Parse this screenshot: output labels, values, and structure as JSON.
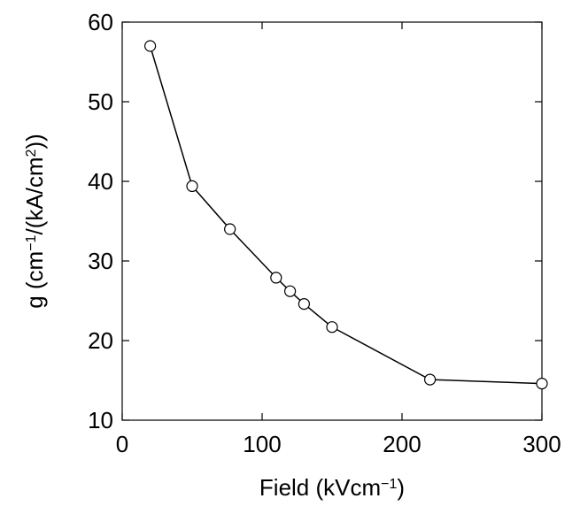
{
  "chart_data": {
    "type": "line",
    "xlabel": [
      "Field (kVcm",
      "−1",
      ")"
    ],
    "ylabel": [
      "g (cm",
      "−1",
      "/(kA/cm",
      "2",
      "))"
    ],
    "x": [
      20,
      50,
      77,
      110,
      120,
      130,
      150,
      220,
      300
    ],
    "series": [
      {
        "color": "#000000",
        "marker": "open-circle",
        "values": [
          57,
          39.4,
          34,
          27.9,
          26.2,
          24.6,
          21.7,
          15.1,
          14.6
        ]
      }
    ],
    "xlim": [
      0,
      300
    ],
    "xticks": [
      0,
      100,
      200,
      300
    ],
    "ylim": [
      10,
      60
    ],
    "yticks": [
      10,
      20,
      30,
      40,
      50,
      60
    ],
    "grid": false
  }
}
